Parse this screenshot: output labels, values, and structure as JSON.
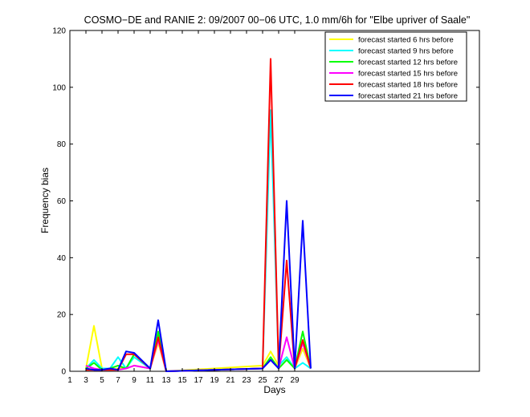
{
  "chart_data": {
    "type": "line",
    "title": "COSMO−DE and RANIE 2: 09/2007 00−06 UTC, 1.0 mm/6h for \"Elbe upriver of Saale\"",
    "xlabel": "Days",
    "ylabel": "Frequency bias",
    "xlim": [
      1,
      52
    ],
    "ylim": [
      0,
      120
    ],
    "xticks": [
      1,
      3,
      5,
      7,
      9,
      11,
      13,
      15,
      17,
      19,
      21,
      23,
      25,
      27,
      29
    ],
    "yticks": [
      0,
      20,
      40,
      60,
      80,
      100,
      120
    ],
    "grid": false,
    "legend_position": "top-right",
    "series": [
      {
        "name": "forecast started 6 hrs before",
        "color": "#ffff00",
        "x": [
          3,
          4,
          5,
          6,
          7,
          8,
          9,
          11,
          12,
          13,
          25,
          26,
          27,
          28,
          29,
          30,
          31
        ],
        "values": [
          1,
          16,
          1,
          0.5,
          1,
          1,
          2,
          1,
          10,
          0,
          2,
          7,
          2,
          5,
          1,
          8,
          1
        ]
      },
      {
        "name": "forecast started 9 hrs before",
        "color": "#00ffff",
        "x": [
          3,
          4,
          5,
          6,
          7,
          8,
          9,
          11,
          12,
          13,
          25,
          26,
          27,
          28,
          29,
          30,
          31
        ],
        "values": [
          1,
          4,
          1,
          1,
          5,
          1,
          5,
          1,
          13,
          0,
          1,
          92,
          2,
          5,
          1,
          3,
          1
        ]
      },
      {
        "name": "forecast started 12 hrs before",
        "color": "#00ff00",
        "x": [
          3,
          4,
          5,
          6,
          7,
          8,
          9,
          11,
          12,
          13,
          25,
          26,
          27,
          28,
          29,
          30,
          31
        ],
        "values": [
          1,
          3,
          0.5,
          1,
          2,
          1,
          6,
          1,
          14,
          0,
          1,
          5,
          1,
          4,
          1,
          14,
          1
        ]
      },
      {
        "name": "forecast started 15 hrs before",
        "color": "#ff00ff",
        "x": [
          3,
          4,
          5,
          6,
          7,
          8,
          9,
          11,
          12,
          13,
          25,
          26,
          27,
          28,
          29,
          30,
          31
        ],
        "values": [
          2,
          1,
          0.5,
          1,
          0.5,
          1,
          2,
          1,
          11,
          0,
          1,
          4,
          1,
          12,
          1,
          10,
          1
        ]
      },
      {
        "name": "forecast started 18 hrs before",
        "color": "#ff0000",
        "x": [
          3,
          4,
          5,
          6,
          7,
          8,
          9,
          11,
          12,
          13,
          25,
          26,
          27,
          28,
          29,
          30,
          31
        ],
        "values": [
          0.5,
          0.5,
          0.5,
          0.5,
          0.5,
          6,
          6,
          1,
          12,
          0,
          1,
          110,
          1,
          39,
          1,
          11,
          1
        ]
      },
      {
        "name": "forecast started 21 hrs before",
        "color": "#0000ff",
        "x": [
          3,
          4,
          5,
          6,
          7,
          8,
          9,
          11,
          12,
          13,
          25,
          26,
          27,
          28,
          29,
          30,
          31
        ],
        "values": [
          1,
          0.5,
          0.5,
          1,
          0.5,
          7,
          6.5,
          1,
          18,
          0,
          1,
          4,
          1,
          60,
          1,
          53,
          1
        ]
      }
    ]
  }
}
